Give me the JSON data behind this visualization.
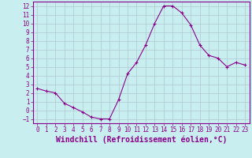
{
  "x": [
    0,
    1,
    2,
    3,
    4,
    5,
    6,
    7,
    8,
    9,
    10,
    11,
    12,
    13,
    14,
    15,
    16,
    17,
    18,
    19,
    20,
    21,
    22,
    23
  ],
  "y": [
    2.5,
    2.2,
    2.0,
    0.8,
    0.3,
    -0.2,
    -0.8,
    -1.0,
    -1.0,
    1.2,
    4.2,
    5.5,
    7.5,
    10.0,
    12.0,
    12.0,
    11.2,
    9.8,
    7.5,
    6.3,
    6.0,
    5.0,
    5.5,
    5.2
  ],
  "line_color": "#8b008b",
  "marker": "+",
  "bg_color": "#c8eef0",
  "grid_color": "#b0c8d0",
  "xlabel": "Windchill (Refroidissement éolien,°C)",
  "xlim": [
    -0.5,
    23.5
  ],
  "ylim": [
    -1.5,
    12.5
  ],
  "yticks": [
    -1,
    0,
    1,
    2,
    3,
    4,
    5,
    6,
    7,
    8,
    9,
    10,
    11,
    12
  ],
  "xticks": [
    0,
    1,
    2,
    3,
    4,
    5,
    6,
    7,
    8,
    9,
    10,
    11,
    12,
    13,
    14,
    15,
    16,
    17,
    18,
    19,
    20,
    21,
    22,
    23
  ],
  "tick_label_fontsize": 5.5,
  "xlabel_fontsize": 7,
  "axis_label_color": "#8b008b",
  "spine_color": "#8b008b"
}
